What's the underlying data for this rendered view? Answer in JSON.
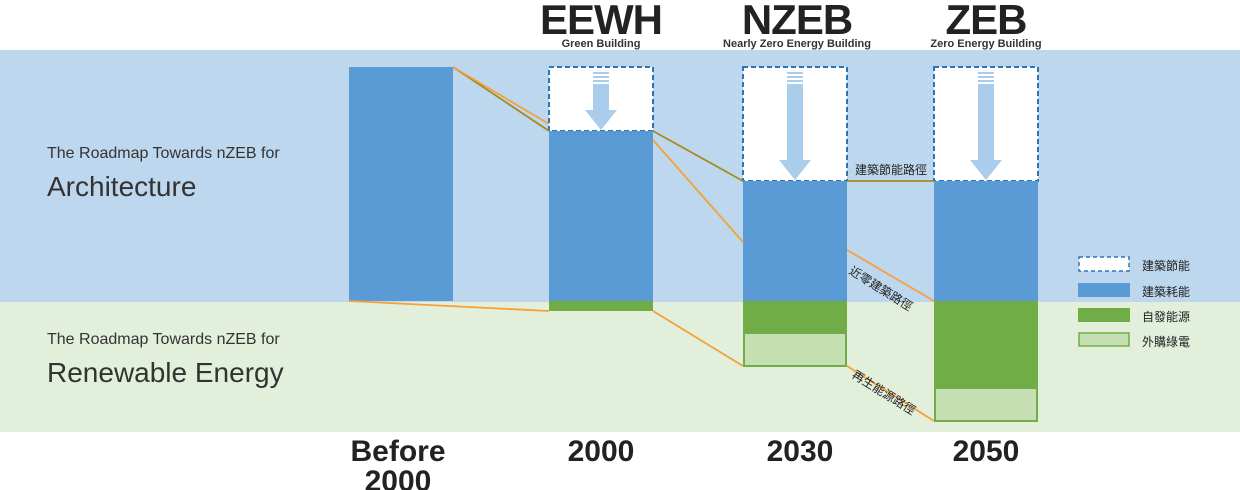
{
  "left_labels": [
    {
      "subtitle": "The Roadmap Towards nZEB for",
      "title": "Architecture"
    },
    {
      "subtitle": "The Roadmap Towards nZEB for",
      "title": "Renewable Energy"
    }
  ],
  "columns": [
    {
      "label": "Before 2000"
    },
    {
      "label": "2000",
      "standard": "EEWH",
      "standard_name": "Green Building"
    },
    {
      "label": "2030",
      "standard": "NZEB",
      "standard_name": "Nearly Zero Energy Building"
    },
    {
      "label": "2050",
      "standard": "ZEB",
      "standard_name": "Zero Energy Building"
    }
  ],
  "path_labels": [
    "建築節能路徑",
    "近零建築路徑",
    "再生能源路徑"
  ],
  "legend": [
    "建築節能",
    "建築耗能",
    "自發能源",
    "外購綠電"
  ]
}
